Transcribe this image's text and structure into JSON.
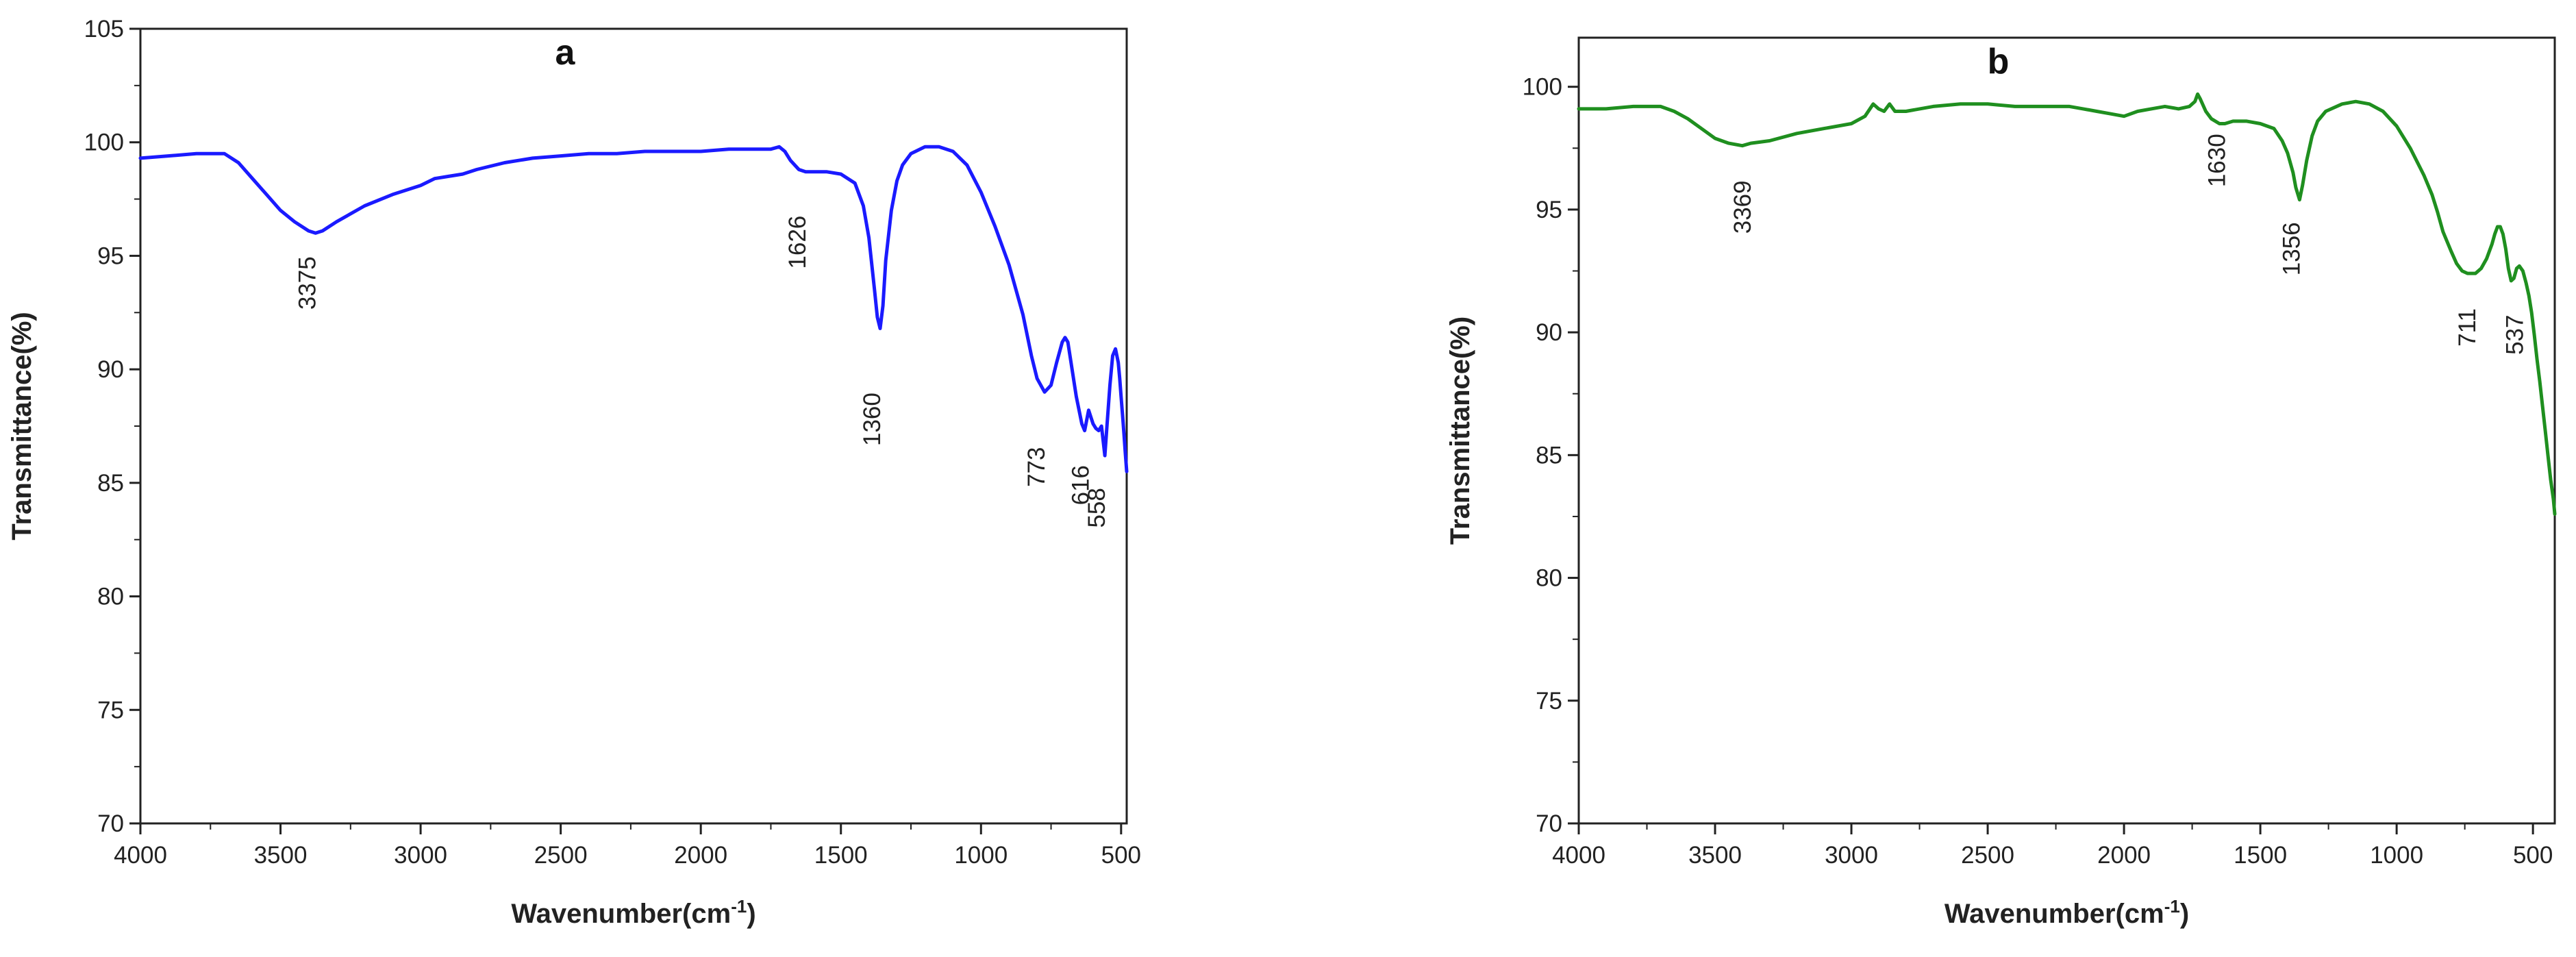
{
  "chart_data": [
    {
      "type": "line",
      "panel_label": "a",
      "title": "",
      "xlabel": "Wavenumber(cm",
      "xlabel_sup": "-1",
      "xlabel_close": ")",
      "ylabel": "Transmittance(%)",
      "xlim": [
        4000,
        480
      ],
      "ylim": [
        70,
        105
      ],
      "xticks": [
        4000,
        3500,
        3000,
        2500,
        2000,
        1500,
        1000,
        500
      ],
      "yticks": [
        70,
        75,
        80,
        85,
        90,
        95,
        100,
        105
      ],
      "grid": false,
      "color": "#1a1aff",
      "series": [
        {
          "x": [
            4000,
            3900,
            3800,
            3700,
            3650,
            3600,
            3550,
            3500,
            3450,
            3400,
            3375,
            3350,
            3300,
            3200,
            3100,
            3000,
            2950,
            2900,
            2850,
            2800,
            2700,
            2600,
            2500,
            2400,
            2300,
            2200,
            2100,
            2000,
            1900,
            1800,
            1750,
            1720,
            1700,
            1680,
            1650,
            1626,
            1600,
            1550,
            1500,
            1450,
            1420,
            1400,
            1380,
            1370,
            1360,
            1350,
            1340,
            1320,
            1300,
            1280,
            1250,
            1200,
            1150,
            1100,
            1050,
            1000,
            950,
            900,
            850,
            820,
            800,
            773,
            750,
            730,
            710,
            700,
            690,
            680,
            660,
            640,
            630,
            616,
            600,
            590,
            580,
            570,
            558,
            550,
            540,
            530,
            520,
            510,
            505,
            500,
            495,
            490,
            485,
            480
          ],
          "y": [
            99.3,
            99.4,
            99.5,
            99.5,
            99.1,
            98.4,
            97.7,
            97.0,
            96.5,
            96.1,
            96.0,
            96.1,
            96.5,
            97.2,
            97.7,
            98.1,
            98.4,
            98.5,
            98.6,
            98.8,
            99.1,
            99.3,
            99.4,
            99.5,
            99.5,
            99.6,
            99.6,
            99.6,
            99.7,
            99.7,
            99.7,
            99.8,
            99.6,
            99.2,
            98.8,
            98.7,
            98.7,
            98.7,
            98.6,
            98.2,
            97.2,
            95.8,
            93.5,
            92.3,
            91.8,
            92.8,
            94.8,
            97.0,
            98.3,
            99.0,
            99.5,
            99.8,
            99.8,
            99.6,
            99.0,
            97.8,
            96.3,
            94.6,
            92.4,
            90.6,
            89.6,
            89.0,
            89.3,
            90.3,
            91.2,
            91.4,
            91.2,
            90.4,
            88.8,
            87.6,
            87.3,
            88.2,
            87.6,
            87.4,
            87.3,
            87.5,
            86.2,
            87.6,
            89.3,
            90.6,
            90.9,
            90.3,
            89.6,
            88.8,
            88.0,
            87.2,
            86.3,
            85.5
          ]
        }
      ],
      "annotations": [
        {
          "text": "3375",
          "x": 3375,
          "y": 93.8
        },
        {
          "text": "1626",
          "x": 1626,
          "y": 95.6
        },
        {
          "text": "1360",
          "x": 1360,
          "y": 87.8
        },
        {
          "text": "773",
          "x": 773,
          "y": 85.7
        },
        {
          "text": "616",
          "x": 616,
          "y": 84.9
        },
        {
          "text": "558",
          "x": 558,
          "y": 83.9
        }
      ]
    },
    {
      "type": "line",
      "panel_label": "b",
      "title": "",
      "xlabel": "Wavenumber(cm",
      "xlabel_sup": "-1",
      "xlabel_close": ")",
      "ylabel": "Transmittance(%)",
      "xlim": [
        4000,
        420
      ],
      "ylim": [
        70,
        102
      ],
      "xticks": [
        4000,
        3500,
        3000,
        2500,
        2000,
        1500,
        1000,
        500
      ],
      "yticks": [
        70,
        75,
        80,
        85,
        90,
        95,
        100
      ],
      "grid": false,
      "color": "#1f8f1f",
      "series": [
        {
          "x": [
            4000,
            3900,
            3800,
            3700,
            3650,
            3600,
            3550,
            3500,
            3450,
            3400,
            3369,
            3300,
            3200,
            3100,
            3000,
            2950,
            2920,
            2900,
            2880,
            2860,
            2840,
            2800,
            2700,
            2600,
            2500,
            2400,
            2300,
            2200,
            2150,
            2100,
            2050,
            2000,
            1950,
            1900,
            1850,
            1800,
            1760,
            1740,
            1730,
            1720,
            1700,
            1680,
            1650,
            1630,
            1600,
            1550,
            1500,
            1450,
            1420,
            1400,
            1380,
            1370,
            1356,
            1345,
            1330,
            1310,
            1290,
            1260,
            1200,
            1150,
            1100,
            1050,
            1000,
            950,
            900,
            870,
            850,
            830,
            800,
            780,
            760,
            740,
            711,
            690,
            670,
            650,
            640,
            630,
            620,
            610,
            600,
            590,
            580,
            570,
            560,
            550,
            537,
            525,
            515,
            505,
            495,
            485,
            475,
            465,
            455,
            445,
            435,
            425,
            420
          ],
          "y": [
            99.1,
            99.1,
            99.2,
            99.2,
            99.0,
            98.7,
            98.3,
            97.9,
            97.7,
            97.6,
            97.7,
            97.8,
            98.1,
            98.3,
            98.5,
            98.8,
            99.3,
            99.1,
            99.0,
            99.3,
            99.0,
            99.0,
            99.2,
            99.3,
            99.3,
            99.2,
            99.2,
            99.2,
            99.1,
            99.0,
            98.9,
            98.8,
            99.0,
            99.1,
            99.2,
            99.1,
            99.2,
            99.4,
            99.7,
            99.5,
            99.0,
            98.7,
            98.5,
            98.5,
            98.6,
            98.6,
            98.5,
            98.3,
            97.8,
            97.3,
            96.5,
            95.9,
            95.4,
            96.0,
            97.0,
            98.0,
            98.6,
            99.0,
            99.3,
            99.4,
            99.3,
            99.0,
            98.4,
            97.5,
            96.4,
            95.6,
            94.9,
            94.1,
            93.3,
            92.8,
            92.5,
            92.4,
            92.4,
            92.6,
            93.0,
            93.6,
            94.0,
            94.3,
            94.3,
            94.0,
            93.4,
            92.6,
            92.1,
            92.2,
            92.6,
            92.7,
            92.5,
            92.0,
            91.5,
            90.8,
            89.9,
            88.9,
            88.0,
            87.0,
            86.0,
            85.0,
            84.0,
            83.2,
            82.6
          ]
        }
      ],
      "annotations": [
        {
          "text": "3369",
          "x": 3369,
          "y": 95.1
        },
        {
          "text": "1630",
          "x": 1630,
          "y": 97.0
        },
        {
          "text": "1356",
          "x": 1356,
          "y": 93.4
        },
        {
          "text": "711",
          "x": 711,
          "y": 90.2
        },
        {
          "text": "537",
          "x": 537,
          "y": 89.9
        }
      ]
    }
  ]
}
